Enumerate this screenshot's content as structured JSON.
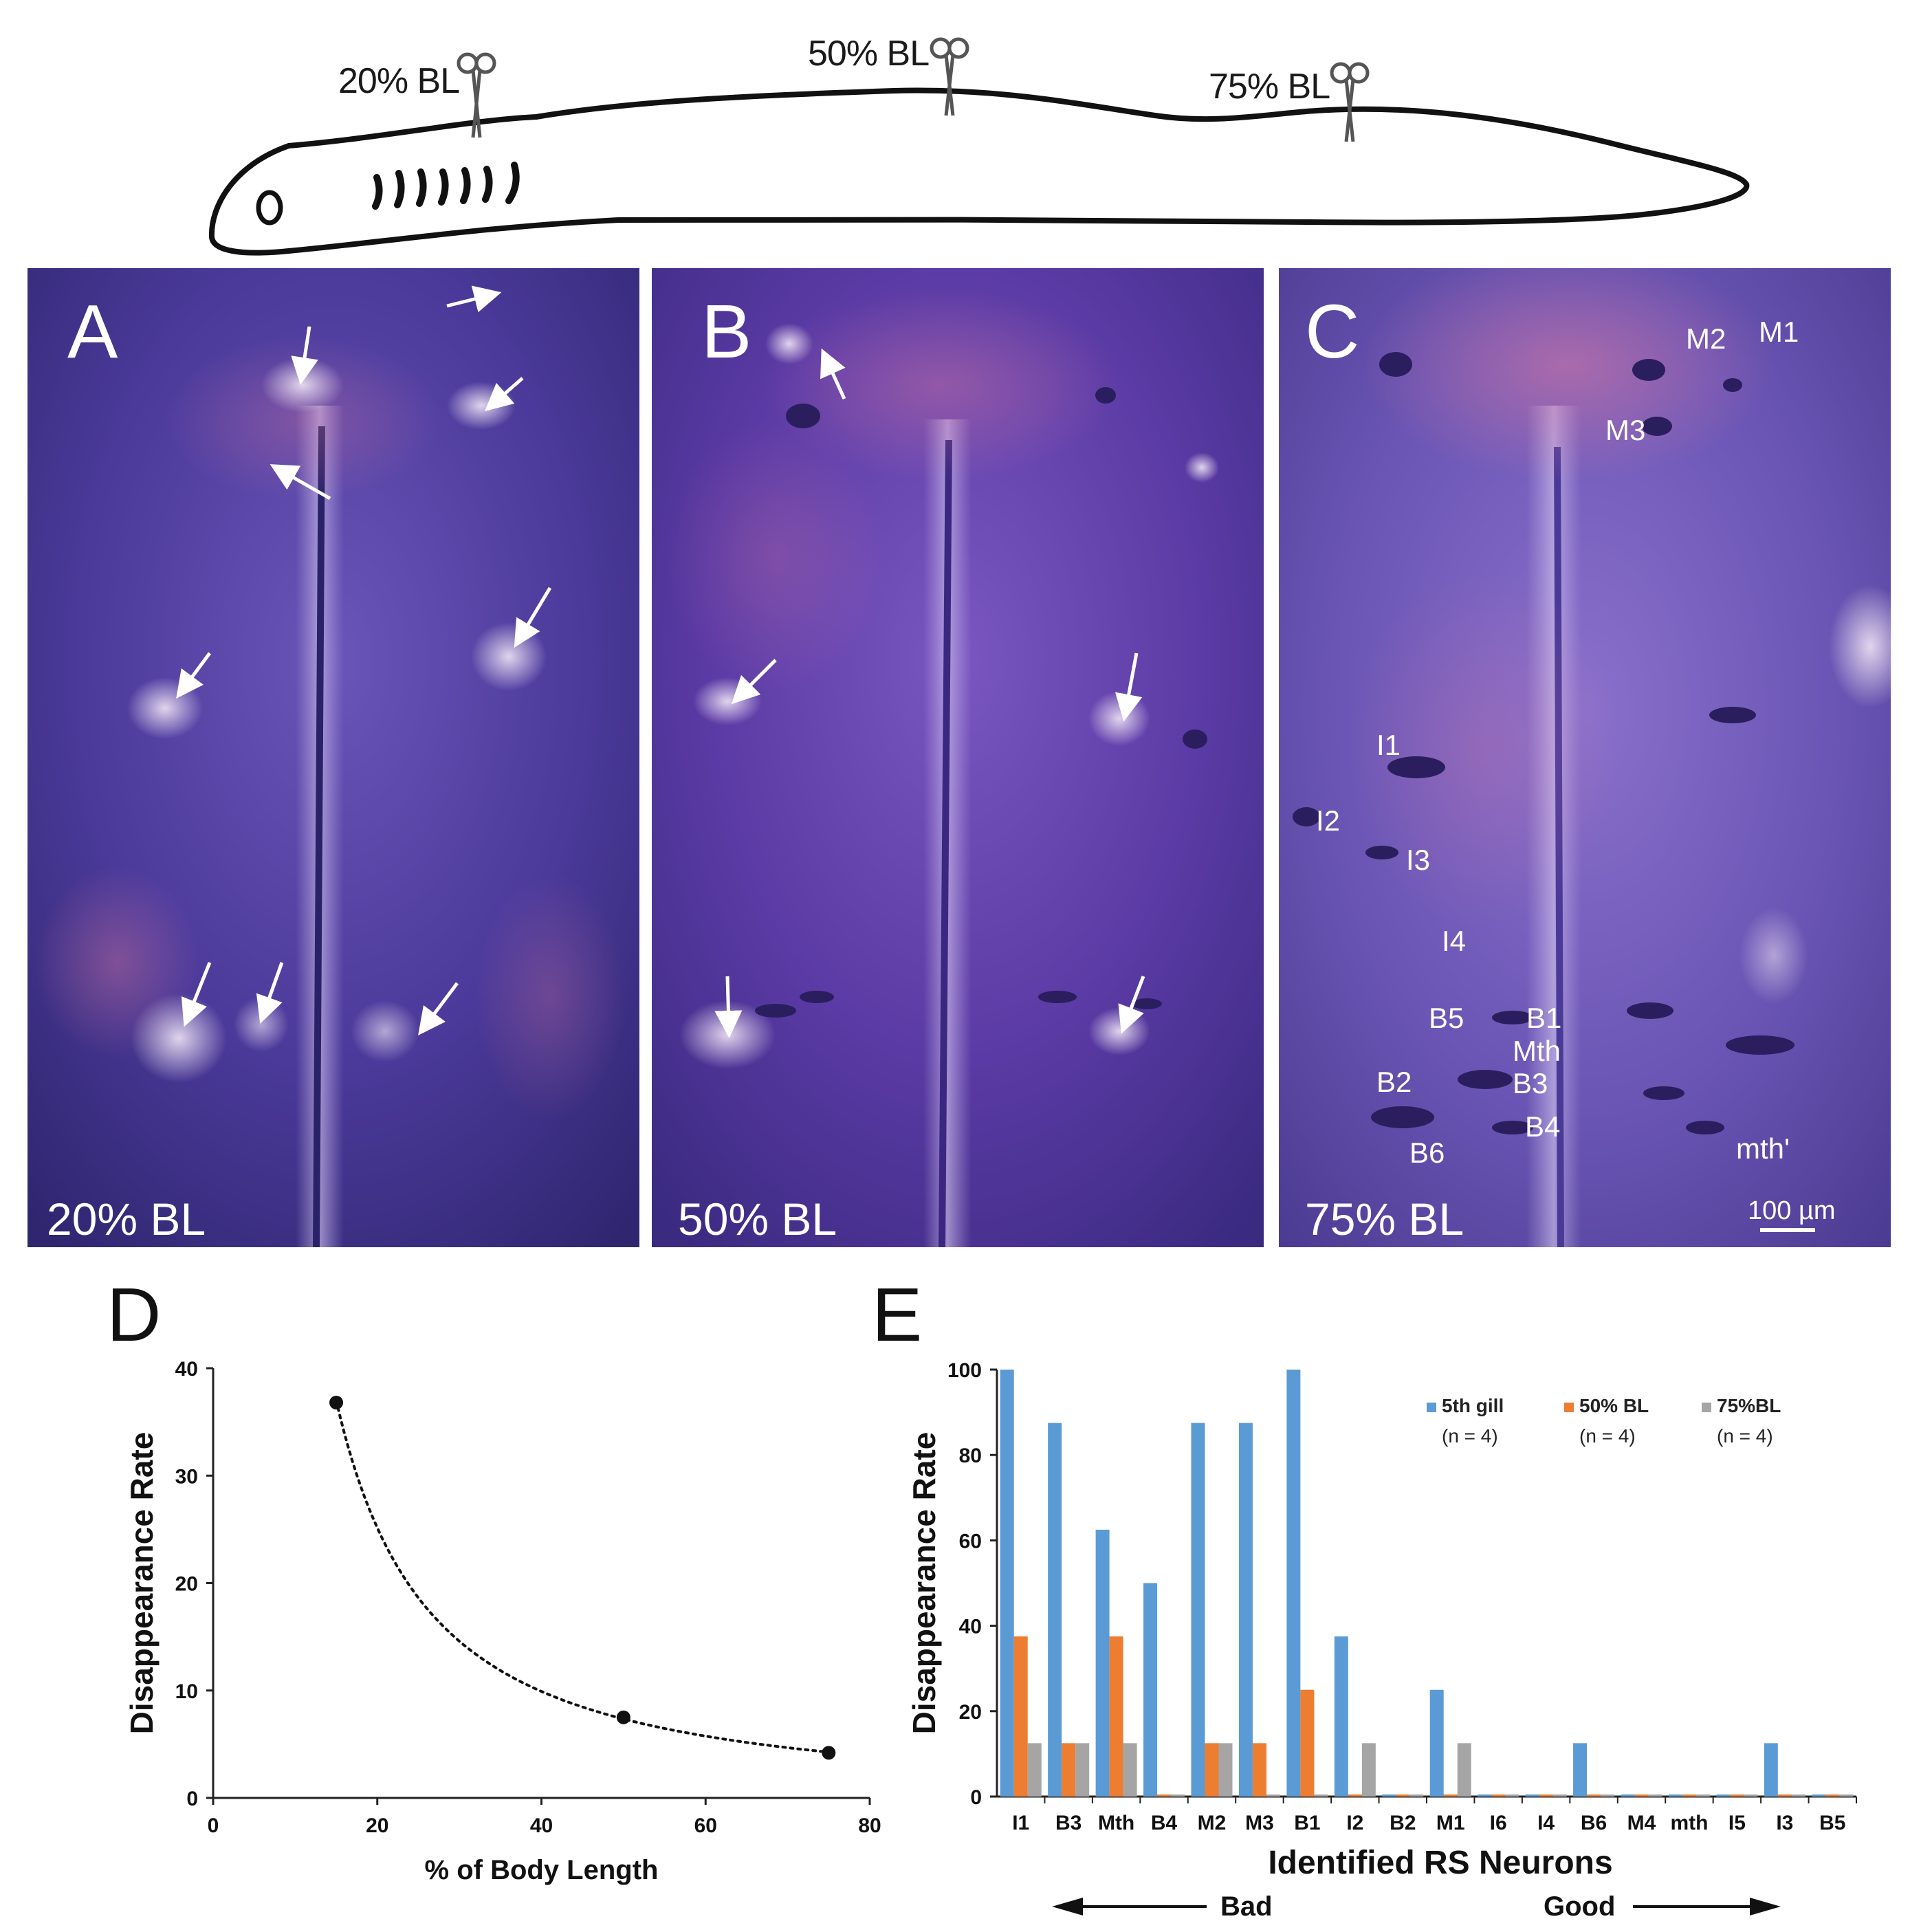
{
  "schematic": {
    "cut_labels": [
      "20% BL",
      "50% BL",
      "75% BL"
    ]
  },
  "micrographs": {
    "A": {
      "letter": "A",
      "level": "20% BL"
    },
    "B": {
      "letter": "B",
      "level": "50% BL"
    },
    "C": {
      "letter": "C",
      "level": "75% BL",
      "neuron_labels": [
        "M2",
        "M1",
        "M3",
        "I1",
        "I2",
        "I3",
        "I4",
        "B5",
        "B1",
        "B2",
        "Mth",
        "B3",
        "B4",
        "B6",
        "mth'"
      ],
      "scale_bar": "100 µm"
    }
  },
  "chart_data": [
    {
      "panel": "D",
      "type": "scatter",
      "title": "",
      "xlabel": "% of Body Length",
      "ylabel": "Disappearance Rate",
      "xlim": [
        0,
        80
      ],
      "ylim": [
        0,
        40
      ],
      "x_ticks": [
        "0",
        "20",
        "40",
        "60",
        "80"
      ],
      "y_ticks": [
        "0",
        "10",
        "20",
        "30",
        "40"
      ],
      "points": [
        {
          "x": 15,
          "y": 36.8
        },
        {
          "x": 50,
          "y": 7.5
        },
        {
          "x": 75,
          "y": 4.2
        }
      ],
      "trendline": "dotted power fit",
      "grid": false
    },
    {
      "panel": "E",
      "type": "bar",
      "title": "",
      "xlabel": "Identified RS Neurons",
      "ylabel": "Disappearance Rate",
      "ylim": [
        0,
        100
      ],
      "y_ticks": [
        "0",
        "20",
        "40",
        "60",
        "80",
        "100"
      ],
      "categories": [
        "I1",
        "B3",
        "Mth",
        "B4",
        "M2",
        "M3",
        "B1",
        "I2",
        "B2",
        "M1",
        "I6",
        "I4",
        "B6",
        "M4",
        "mth",
        "I5",
        "I3",
        "B5"
      ],
      "series": [
        {
          "name": "5th gill",
          "n": "(n = 4)",
          "color": "#5b9bd5",
          "values": [
            100,
            87.5,
            62.5,
            50,
            87.5,
            87.5,
            100,
            37.5,
            0,
            25,
            0,
            0,
            12.5,
            0,
            0,
            0,
            12.5,
            0
          ]
        },
        {
          "name": "50% BL",
          "n": "(n = 4)",
          "color": "#ed7d31",
          "values": [
            37.5,
            12.5,
            37.5,
            0,
            12.5,
            12.5,
            25,
            0,
            0,
            0,
            0,
            0,
            0,
            0,
            0,
            0,
            0,
            0
          ]
        },
        {
          "name": "75%BL",
          "n": "(n = 4)",
          "color": "#a5a5a5",
          "values": [
            12.5,
            12.5,
            12.5,
            0,
            12.5,
            0,
            0,
            12.5,
            0,
            12.5,
            0,
            0,
            0,
            0,
            0,
            0,
            0,
            0
          ]
        }
      ],
      "legend_position": "top-right",
      "arrow_left": "Bad",
      "arrow_right": "Good",
      "grid": false
    }
  ],
  "panel_letters": {
    "D": "D",
    "E": "E"
  }
}
